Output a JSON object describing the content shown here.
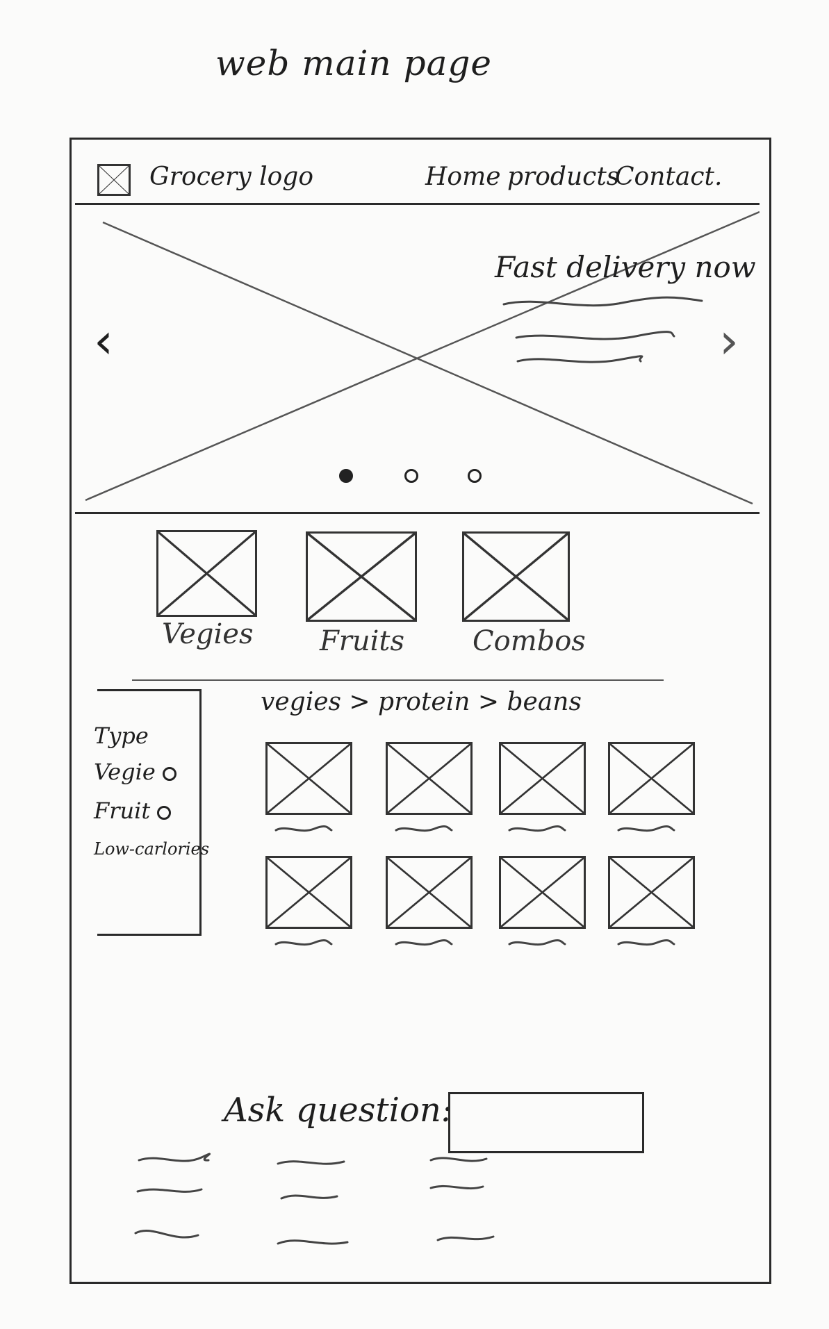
{
  "page": {
    "title": "web main page"
  },
  "nav": {
    "logo_text": "Grocery logo",
    "links": [
      "Home",
      "products",
      "Contact."
    ]
  },
  "hero": {
    "heading": "Fast delivery now",
    "prev_arrow": "‹",
    "next_arrow": "›",
    "dots": {
      "count": 3,
      "active": 1
    }
  },
  "categories": [
    "Vegies",
    "Fruits",
    "Combos"
  ],
  "filters": {
    "title": "Type",
    "options": [
      "Vegie",
      "Fruit",
      "Low-carlories"
    ]
  },
  "breadcrumb": "vegies > protein > beans",
  "products": {
    "rows": 2,
    "columns": 4
  },
  "ask": {
    "label": "Ask question:",
    "placeholder": ""
  }
}
